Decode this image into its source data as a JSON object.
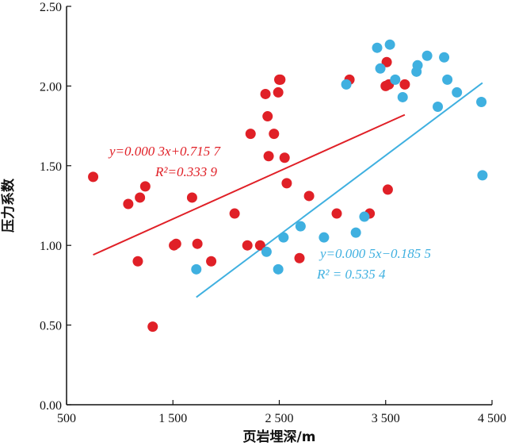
{
  "chart_data": {
    "type": "scatter",
    "xlabel": "页岩埋深/m",
    "ylabel": "压力系数",
    "xlim": [
      500,
      4500
    ],
    "ylim": [
      0.0,
      2.5
    ],
    "x_ticks": [
      500,
      1500,
      2500,
      3500,
      4500
    ],
    "x_tick_labels": [
      "500",
      "1 500",
      "2 500",
      "3 500",
      "4 500"
    ],
    "y_ticks": [
      0.0,
      0.5,
      1.0,
      1.5,
      2.0,
      2.5
    ],
    "y_tick_labels": [
      "0.00",
      "0.50",
      "1.00",
      "1.50",
      "2.00",
      "2.50"
    ],
    "grid": false,
    "series": [
      {
        "color": "#e02027",
        "points": [
          [
            750,
            1.43
          ],
          [
            1080,
            1.26
          ],
          [
            1170,
            0.9
          ],
          [
            1190,
            1.3
          ],
          [
            1240,
            1.37
          ],
          [
            1310,
            0.49
          ],
          [
            1510,
            1.0
          ],
          [
            1530,
            1.01
          ],
          [
            1680,
            1.3
          ],
          [
            1730,
            1.01
          ],
          [
            1860,
            0.9
          ],
          [
            2080,
            1.2
          ],
          [
            2200,
            1.0
          ],
          [
            2230,
            1.7
          ],
          [
            2320,
            1.0
          ],
          [
            2370,
            1.95
          ],
          [
            2390,
            1.81
          ],
          [
            2400,
            1.56
          ],
          [
            2450,
            1.7
          ],
          [
            2490,
            1.96
          ],
          [
            2500,
            2.04
          ],
          [
            2510,
            2.04
          ],
          [
            2550,
            1.55
          ],
          [
            2570,
            1.39
          ],
          [
            2690,
            0.92
          ],
          [
            2780,
            1.31
          ],
          [
            3040,
            1.2
          ],
          [
            3160,
            2.04
          ],
          [
            3350,
            1.2
          ],
          [
            3500,
            2.0
          ],
          [
            3510,
            2.15
          ],
          [
            3520,
            1.35
          ],
          [
            3530,
            2.01
          ],
          [
            3680,
            2.01
          ]
        ],
        "trendline": {
          "x": [
            750,
            3680
          ],
          "equation": "y=0.000 3x+0.715 7",
          "r2": "R²=0.333 9"
        }
      },
      {
        "color": "#3fb0e0",
        "points": [
          [
            1720,
            0.85
          ],
          [
            2380,
            0.96
          ],
          [
            2490,
            0.85
          ],
          [
            2540,
            1.05
          ],
          [
            2700,
            1.12
          ],
          [
            2920,
            1.05
          ],
          [
            3130,
            2.01
          ],
          [
            3220,
            1.08
          ],
          [
            3300,
            1.18
          ],
          [
            3420,
            2.24
          ],
          [
            3450,
            2.11
          ],
          [
            3540,
            2.26
          ],
          [
            3590,
            2.04
          ],
          [
            3660,
            1.93
          ],
          [
            3790,
            2.09
          ],
          [
            3800,
            2.13
          ],
          [
            3890,
            2.19
          ],
          [
            3990,
            1.87
          ],
          [
            4050,
            2.18
          ],
          [
            4080,
            2.04
          ],
          [
            4170,
            1.96
          ],
          [
            4400,
            1.9
          ],
          [
            4410,
            1.44
          ]
        ],
        "trendline": {
          "x": [
            1720,
            4410
          ],
          "equation": "y=0.000 5x−0.185 5",
          "r2": "R² = 0.535 4"
        }
      }
    ]
  }
}
